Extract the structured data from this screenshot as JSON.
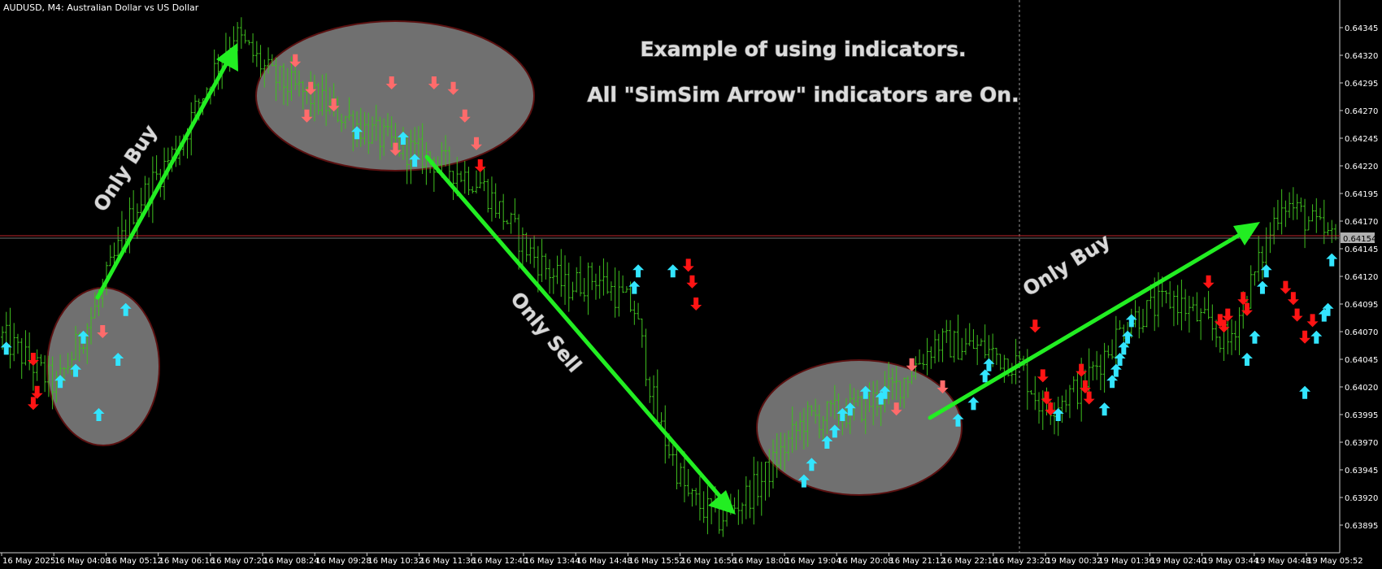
{
  "window": {
    "title": "AUDUSD, M4:  Australian Dollar vs US Dollar"
  },
  "colors": {
    "background": "#000000",
    "candles": "#3fbf1f",
    "buy_arrow": "#33e5ff",
    "sell_arrow_light": "#ff6b6b",
    "sell_arrow": "#ff1414",
    "trend_arrow": "#22ee22",
    "ellipse_fill": "#8f8f8f",
    "ellipse_border": "#5a1010",
    "bid_line": "#c0262b",
    "price_label_bg": "#b0b0b0"
  },
  "annotations": {
    "heading_line1": "Example of using indicators.",
    "heading_line2": "All \"SimSim Arrow\" indicators are On.",
    "labels": [
      {
        "text": "Only Buy"
      },
      {
        "text": "Only Sell"
      },
      {
        "text": "Only Buy"
      }
    ]
  },
  "chart_data": {
    "type": "ohlc_bars",
    "symbol": "AUDUSD",
    "timeframe": "M4",
    "ylim": [
      0.6388,
      0.6436
    ],
    "current_price": "0.64154",
    "y_ticks": [
      "0.64345",
      "0.64320",
      "0.64295",
      "0.64270",
      "0.64245",
      "0.64220",
      "0.64195",
      "0.64170",
      "0.64145",
      "0.64120",
      "0.64095",
      "0.64070",
      "0.64045",
      "0.64020",
      "0.63995",
      "0.63970",
      "0.63945",
      "0.63920",
      "0.63895"
    ],
    "x_ticks": [
      "16 May 2025",
      "16 May 04:08",
      "16 May 05:12",
      "16 May 06:16",
      "16 May 07:20",
      "16 May 08:24",
      "16 May 09:28",
      "16 May 10:32",
      "16 May 11:36",
      "16 May 12:40",
      "16 May 13:44",
      "16 May 14:48",
      "16 May 15:52",
      "16 May 16:56",
      "16 May 18:00",
      "16 May 19:04",
      "16 May 20:08",
      "16 May 21:12",
      "16 May 22:16",
      "16 May 23:20",
      "19 May 00:32",
      "19 May 01:36",
      "19 May 02:40",
      "19 May 03:44",
      "19 May 04:48",
      "19 May 05:52"
    ],
    "path_anchors": [
      {
        "i": 0,
        "p": 0.64065
      },
      {
        "i": 14,
        "p": 0.6402
      },
      {
        "i": 24,
        "p": 0.6409
      },
      {
        "i": 34,
        "p": 0.6418
      },
      {
        "i": 46,
        "p": 0.6424
      },
      {
        "i": 54,
        "p": 0.643
      },
      {
        "i": 60,
        "p": 0.6434
      },
      {
        "i": 70,
        "p": 0.643
      },
      {
        "i": 84,
        "p": 0.64275
      },
      {
        "i": 98,
        "p": 0.64245
      },
      {
        "i": 112,
        "p": 0.64225
      },
      {
        "i": 124,
        "p": 0.64205
      },
      {
        "i": 136,
        "p": 0.64145
      },
      {
        "i": 146,
        "p": 0.6411
      },
      {
        "i": 154,
        "p": 0.6412
      },
      {
        "i": 164,
        "p": 0.6409
      },
      {
        "i": 170,
        "p": 0.6399
      },
      {
        "i": 178,
        "p": 0.6392
      },
      {
        "i": 186,
        "p": 0.639
      },
      {
        "i": 196,
        "p": 0.6393
      },
      {
        "i": 208,
        "p": 0.6399
      },
      {
        "i": 222,
        "p": 0.64
      },
      {
        "i": 232,
        "p": 0.6402
      },
      {
        "i": 242,
        "p": 0.6406
      },
      {
        "i": 254,
        "p": 0.64055
      },
      {
        "i": 264,
        "p": 0.6404
      },
      {
        "i": 270,
        "p": 0.64
      },
      {
        "i": 280,
        "p": 0.6402
      },
      {
        "i": 292,
        "p": 0.6408
      },
      {
        "i": 304,
        "p": 0.641
      },
      {
        "i": 318,
        "p": 0.6406
      },
      {
        "i": 326,
        "p": 0.6413
      },
      {
        "i": 332,
        "p": 0.6419
      },
      {
        "i": 346,
        "p": 0.6415
      }
    ],
    "signals": [
      {
        "type": "buy",
        "i": 1,
        "p": 0.64055
      },
      {
        "type": "sell",
        "i": 8,
        "p": 0.64045
      },
      {
        "type": "sell",
        "i": 9,
        "p": 0.64015
      },
      {
        "type": "sell",
        "i": 8,
        "p": 0.64005
      },
      {
        "type": "buy",
        "i": 15,
        "p": 0.64025
      },
      {
        "type": "buy",
        "i": 19,
        "p": 0.64035
      },
      {
        "type": "buy",
        "i": 21,
        "p": 0.64065
      },
      {
        "type": "sell_light",
        "i": 26,
        "p": 0.6407
      },
      {
        "type": "buy",
        "i": 25,
        "p": 0.63995
      },
      {
        "type": "buy",
        "i": 30,
        "p": 0.64045
      },
      {
        "type": "buy",
        "i": 32,
        "p": 0.6409
      },
      {
        "type": "sell_light",
        "i": 76,
        "p": 0.64315
      },
      {
        "type": "sell_light",
        "i": 80,
        "p": 0.6429
      },
      {
        "type": "sell_light",
        "i": 79,
        "p": 0.64265
      },
      {
        "type": "sell_light",
        "i": 86,
        "p": 0.64275
      },
      {
        "type": "buy",
        "i": 92,
        "p": 0.6425
      },
      {
        "type": "sell_light",
        "i": 101,
        "p": 0.64295
      },
      {
        "type": "sell_light",
        "i": 102,
        "p": 0.64235
      },
      {
        "type": "buy",
        "i": 104,
        "p": 0.64245
      },
      {
        "type": "buy",
        "i": 107,
        "p": 0.64225
      },
      {
        "type": "sell_light",
        "i": 112,
        "p": 0.64295
      },
      {
        "type": "sell_light",
        "i": 117,
        "p": 0.6429
      },
      {
        "type": "sell_light",
        "i": 120,
        "p": 0.64265
      },
      {
        "type": "sell_light",
        "i": 123,
        "p": 0.6424
      },
      {
        "type": "sell",
        "i": 124,
        "p": 0.6422
      },
      {
        "type": "buy",
        "i": 165,
        "p": 0.64125
      },
      {
        "type": "buy",
        "i": 164,
        "p": 0.6411
      },
      {
        "type": "buy",
        "i": 174,
        "p": 0.64125
      },
      {
        "type": "sell",
        "i": 178,
        "p": 0.6413
      },
      {
        "type": "sell",
        "i": 179,
        "p": 0.64115
      },
      {
        "type": "sell",
        "i": 180,
        "p": 0.64095
      },
      {
        "type": "buy",
        "i": 208,
        "p": 0.63935
      },
      {
        "type": "buy",
        "i": 210,
        "p": 0.6395
      },
      {
        "type": "buy",
        "i": 214,
        "p": 0.6397
      },
      {
        "type": "buy",
        "i": 216,
        "p": 0.6398
      },
      {
        "type": "buy",
        "i": 218,
        "p": 0.63995
      },
      {
        "type": "buy",
        "i": 220,
        "p": 0.64
      },
      {
        "type": "buy",
        "i": 224,
        "p": 0.64015
      },
      {
        "type": "buy",
        "i": 228,
        "p": 0.6401
      },
      {
        "type": "buy",
        "i": 229,
        "p": 0.64015
      },
      {
        "type": "sell_light",
        "i": 232,
        "p": 0.64
      },
      {
        "type": "sell_light",
        "i": 236,
        "p": 0.6404
      },
      {
        "type": "sell_light",
        "i": 244,
        "p": 0.6402
      },
      {
        "type": "buy",
        "i": 248,
        "p": 0.6399
      },
      {
        "type": "buy",
        "i": 252,
        "p": 0.64005
      },
      {
        "type": "buy",
        "i": 255,
        "p": 0.6403
      },
      {
        "type": "buy",
        "i": 256,
        "p": 0.6404
      },
      {
        "type": "sell",
        "i": 268,
        "p": 0.64075
      },
      {
        "type": "sell",
        "i": 270,
        "p": 0.6403
      },
      {
        "type": "sell",
        "i": 271,
        "p": 0.6401
      },
      {
        "type": "sell",
        "i": 272,
        "p": 0.64
      },
      {
        "type": "buy",
        "i": 274,
        "p": 0.63995
      },
      {
        "type": "sell",
        "i": 280,
        "p": 0.64035
      },
      {
        "type": "sell",
        "i": 281,
        "p": 0.6402
      },
      {
        "type": "sell",
        "i": 282,
        "p": 0.6401
      },
      {
        "type": "buy",
        "i": 286,
        "p": 0.64
      },
      {
        "type": "buy",
        "i": 288,
        "p": 0.64025
      },
      {
        "type": "buy",
        "i": 289,
        "p": 0.64035
      },
      {
        "type": "buy",
        "i": 290,
        "p": 0.64045
      },
      {
        "type": "buy",
        "i": 291,
        "p": 0.64055
      },
      {
        "type": "buy",
        "i": 292,
        "p": 0.64065
      },
      {
        "type": "buy",
        "i": 293,
        "p": 0.6408
      },
      {
        "type": "sell",
        "i": 313,
        "p": 0.64115
      },
      {
        "type": "sell",
        "i": 316,
        "p": 0.6408
      },
      {
        "type": "sell",
        "i": 317,
        "p": 0.64075
      },
      {
        "type": "sell",
        "i": 318,
        "p": 0.64085
      },
      {
        "type": "sell",
        "i": 322,
        "p": 0.641
      },
      {
        "type": "sell",
        "i": 323,
        "p": 0.6409
      },
      {
        "type": "buy",
        "i": 323,
        "p": 0.64045
      },
      {
        "type": "buy",
        "i": 325,
        "p": 0.64065
      },
      {
        "type": "buy",
        "i": 327,
        "p": 0.6411
      },
      {
        "type": "buy",
        "i": 328,
        "p": 0.64125
      },
      {
        "type": "sell",
        "i": 333,
        "p": 0.6411
      },
      {
        "type": "sell",
        "i": 335,
        "p": 0.641
      },
      {
        "type": "sell",
        "i": 336,
        "p": 0.64085
      },
      {
        "type": "sell",
        "i": 338,
        "p": 0.64065
      },
      {
        "type": "sell",
        "i": 340,
        "p": 0.6408
      },
      {
        "type": "buy",
        "i": 341,
        "p": 0.64065
      },
      {
        "type": "buy",
        "i": 343,
        "p": 0.64085
      },
      {
        "type": "buy",
        "i": 344,
        "p": 0.6409
      },
      {
        "type": "buy",
        "i": 338,
        "p": 0.64015
      },
      {
        "type": "buy",
        "i": 345,
        "p": 0.64135
      }
    ]
  }
}
